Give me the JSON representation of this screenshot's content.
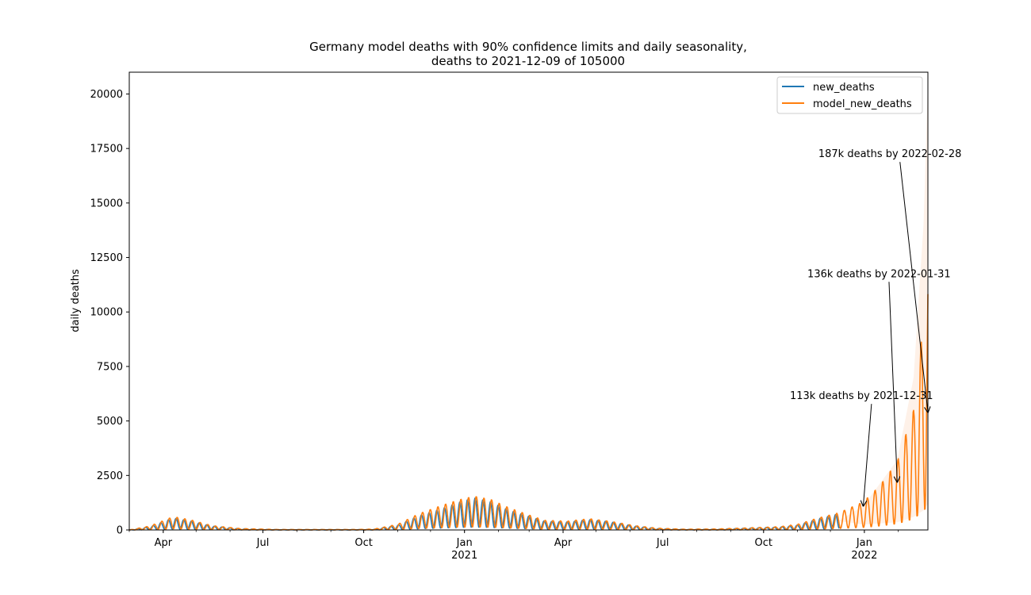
{
  "chart_data": {
    "type": "line",
    "title_line1": "Germany model deaths with 90% confidence limits and daily seasonality,",
    "title_line2": "deaths to 2021-12-09 of 105000",
    "xlabel": "",
    "ylabel": "daily deaths",
    "xlim": [
      "2020-03-01",
      "2022-02-28"
    ],
    "ylim": [
      0,
      21000
    ],
    "y_ticks": [
      0,
      2500,
      5000,
      7500,
      10000,
      12500,
      15000,
      17500,
      20000
    ],
    "x_ticks": [
      {
        "date": "2020-04-01",
        "label": "Apr",
        "sublabel": ""
      },
      {
        "date": "2020-07-01",
        "label": "Jul",
        "sublabel": ""
      },
      {
        "date": "2020-10-01",
        "label": "Oct",
        "sublabel": ""
      },
      {
        "date": "2021-01-01",
        "label": "Jan",
        "sublabel": "2021"
      },
      {
        "date": "2021-04-01",
        "label": "Apr",
        "sublabel": ""
      },
      {
        "date": "2021-07-01",
        "label": "Jul",
        "sublabel": ""
      },
      {
        "date": "2021-10-01",
        "label": "Oct",
        "sublabel": ""
      },
      {
        "date": "2022-01-01",
        "label": "Jan",
        "sublabel": "2022"
      }
    ],
    "grid": false,
    "legend_position": "top-right",
    "series": [
      {
        "name": "new_deaths",
        "color": "#1f77b4",
        "trend": [
          [
            "2020-03-01",
            0
          ],
          [
            "2020-03-20",
            80
          ],
          [
            "2020-04-10",
            300
          ],
          [
            "2020-04-25",
            230
          ],
          [
            "2020-05-15",
            100
          ],
          [
            "2020-06-10",
            30
          ],
          [
            "2020-07-15",
            8
          ],
          [
            "2020-09-20",
            8
          ],
          [
            "2020-10-10",
            15
          ],
          [
            "2020-11-01",
            120
          ],
          [
            "2020-11-20",
            350
          ],
          [
            "2020-12-10",
            520
          ],
          [
            "2020-12-28",
            700
          ],
          [
            "2021-01-10",
            800
          ],
          [
            "2021-01-25",
            700
          ],
          [
            "2021-02-10",
            500
          ],
          [
            "2021-02-28",
            350
          ],
          [
            "2021-03-15",
            220
          ],
          [
            "2021-04-05",
            200
          ],
          [
            "2021-04-25",
            260
          ],
          [
            "2021-05-15",
            200
          ],
          [
            "2021-06-05",
            100
          ],
          [
            "2021-06-25",
            40
          ],
          [
            "2021-07-20",
            15
          ],
          [
            "2021-08-20",
            20
          ],
          [
            "2021-09-20",
            50
          ],
          [
            "2021-10-15",
            70
          ],
          [
            "2021-11-01",
            120
          ],
          [
            "2021-11-20",
            280
          ],
          [
            "2021-12-05",
            380
          ],
          [
            "2021-12-09",
            400
          ]
        ],
        "amplitude": 0.85
      },
      {
        "name": "model_new_deaths",
        "color": "#ff7f0e",
        "trend": [
          [
            "2020-03-01",
            0
          ],
          [
            "2020-03-20",
            100
          ],
          [
            "2020-04-10",
            330
          ],
          [
            "2020-04-25",
            260
          ],
          [
            "2020-05-15",
            110
          ],
          [
            "2020-06-10",
            35
          ],
          [
            "2020-07-15",
            10
          ],
          [
            "2020-09-20",
            10
          ],
          [
            "2020-10-10",
            20
          ],
          [
            "2020-11-01",
            140
          ],
          [
            "2020-11-20",
            400
          ],
          [
            "2020-12-10",
            600
          ],
          [
            "2020-12-28",
            760
          ],
          [
            "2021-01-10",
            840
          ],
          [
            "2021-01-25",
            760
          ],
          [
            "2021-02-10",
            560
          ],
          [
            "2021-02-28",
            380
          ],
          [
            "2021-03-15",
            240
          ],
          [
            "2021-04-05",
            220
          ],
          [
            "2021-04-25",
            280
          ],
          [
            "2021-05-15",
            210
          ],
          [
            "2021-06-05",
            110
          ],
          [
            "2021-06-25",
            45
          ],
          [
            "2021-07-20",
            18
          ],
          [
            "2021-08-20",
            25
          ],
          [
            "2021-09-20",
            55
          ],
          [
            "2021-10-15",
            80
          ],
          [
            "2021-11-01",
            140
          ],
          [
            "2021-11-20",
            300
          ],
          [
            "2021-12-09",
            430
          ],
          [
            "2021-12-31",
            700
          ],
          [
            "2022-01-15",
            1100
          ],
          [
            "2022-01-31",
            1700
          ],
          [
            "2022-02-15",
            3000
          ],
          [
            "2022-02-24",
            5200
          ],
          [
            "2022-02-28",
            6500
          ]
        ],
        "amplitude": 0.85
      }
    ],
    "confidence_band": {
      "color": "#fde8d8",
      "upper": [
        [
          "2021-12-09",
          430
        ],
        [
          "2021-12-31",
          1100
        ],
        [
          "2022-01-31",
          3200
        ],
        [
          "2022-02-15",
          7000
        ],
        [
          "2022-02-24",
          14000
        ],
        [
          "2022-02-28",
          20500
        ]
      ],
      "lower": [
        [
          "2021-12-09",
          400
        ],
        [
          "2021-12-31",
          250
        ],
        [
          "2022-01-31",
          350
        ],
        [
          "2022-02-15",
          600
        ],
        [
          "2022-02-24",
          900
        ],
        [
          "2022-02-28",
          1200
        ]
      ]
    },
    "annotations": [
      {
        "text": "113k deaths by 2021-12-31",
        "text_at": [
          "2021-10-25",
          6000
        ],
        "arrow_to": [
          "2021-12-31",
          1100
        ]
      },
      {
        "text": "136k deaths by 2022-01-31",
        "text_at": [
          "2021-11-10",
          11600
        ],
        "arrow_to": [
          "2022-01-31",
          2200
        ]
      },
      {
        "text": "187k deaths by 2022-02-28",
        "text_at": [
          "2021-11-20",
          17100
        ],
        "arrow_to": [
          "2022-02-28",
          5400
        ]
      }
    ]
  }
}
